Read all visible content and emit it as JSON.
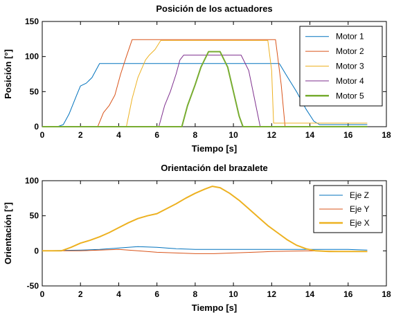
{
  "chart_data": [
    {
      "type": "line",
      "title": "Posición de los actuadores",
      "xlabel": "Tiempo [s]",
      "ylabel": "Posición [°]",
      "xlim": [
        0,
        18
      ],
      "ylim": [
        0,
        150
      ],
      "xticks": [
        0,
        2,
        4,
        6,
        8,
        10,
        12,
        14,
        16,
        18
      ],
      "yticks": [
        0,
        50,
        100,
        150
      ],
      "grid": false,
      "legend_position": "top-right",
      "series": [
        {
          "name": "Motor 1",
          "color": "#0072BD",
          "bold": false,
          "x": [
            0,
            0.8,
            1.1,
            1.4,
            1.8,
            2.0,
            2.3,
            2.6,
            3.0,
            12.4,
            12.8,
            13.3,
            13.8,
            14.2,
            14.5,
            17.0
          ],
          "y": [
            0,
            0,
            3,
            18,
            45,
            58,
            62,
            70,
            90,
            90,
            72,
            50,
            25,
            8,
            3,
            3
          ]
        },
        {
          "name": "Motor 2",
          "color": "#D95319",
          "bold": false,
          "x": [
            0,
            2.9,
            3.2,
            3.5,
            3.8,
            4.1,
            4.4,
            4.7,
            12.2,
            12.5,
            12.7,
            17.0
          ],
          "y": [
            0,
            0,
            20,
            30,
            45,
            75,
            100,
            124,
            124,
            60,
            0,
            0
          ]
        },
        {
          "name": "Motor 3",
          "color": "#EDB120",
          "bold": false,
          "x": [
            0,
            4.4,
            4.7,
            5.0,
            5.4,
            5.6,
            5.9,
            6.2,
            11.8,
            12.0,
            12.1,
            17.0
          ],
          "y": [
            0,
            0,
            40,
            70,
            95,
            102,
            110,
            123,
            123,
            80,
            5,
            5
          ]
        },
        {
          "name": "Motor 4",
          "color": "#7E2F8E",
          "bold": false,
          "x": [
            0,
            6.1,
            6.4,
            6.7,
            7.0,
            7.2,
            7.4,
            10.4,
            10.8,
            11.1,
            11.4,
            17.0
          ],
          "y": [
            0,
            0,
            30,
            50,
            75,
            95,
            102,
            102,
            80,
            40,
            0,
            0
          ]
        },
        {
          "name": "Motor 5",
          "color": "#77AC30",
          "bold": true,
          "x": [
            0,
            7.3,
            7.6,
            8.0,
            8.3,
            8.7,
            9.3,
            9.7,
            10.0,
            10.3,
            10.5,
            17.0
          ],
          "y": [
            0,
            0,
            30,
            60,
            85,
            107,
            107,
            85,
            50,
            15,
            0,
            0
          ]
        }
      ]
    },
    {
      "type": "line",
      "title": "Orientación del brazalete",
      "xlabel": "Tiempo [s]",
      "ylabel": "Orientación [°]",
      "xlim": [
        0,
        18
      ],
      "ylim": [
        -50,
        100
      ],
      "xticks": [
        0,
        2,
        4,
        6,
        8,
        10,
        12,
        14,
        16,
        18
      ],
      "yticks": [
        -50,
        0,
        50,
        100
      ],
      "grid": false,
      "legend_position": "top-right",
      "series": [
        {
          "name": "Eje Z",
          "color": "#0072BD",
          "bold": false,
          "x": [
            0,
            2,
            3,
            4,
            5,
            6,
            7,
            8,
            10,
            12,
            14,
            16,
            17
          ],
          "y": [
            0,
            1,
            2,
            4,
            6,
            5,
            3,
            2,
            2,
            2,
            2,
            2,
            1
          ]
        },
        {
          "name": "Eje Y",
          "color": "#D95319",
          "bold": false,
          "x": [
            0,
            2,
            3,
            4,
            5,
            6,
            7,
            8,
            9,
            10,
            12,
            14,
            16,
            17
          ],
          "y": [
            0,
            0,
            1,
            2,
            0,
            -2,
            -3,
            -4,
            -4,
            -3,
            -1,
            0,
            -1,
            -1
          ]
        },
        {
          "name": "Eje X",
          "color": "#EDB120",
          "bold": true,
          "x": [
            0,
            1.0,
            1.5,
            2.0,
            2.5,
            3.0,
            3.5,
            4.0,
            4.5,
            5.0,
            5.5,
            6.0,
            6.5,
            7.0,
            7.5,
            8.0,
            8.5,
            8.9,
            9.3,
            9.8,
            10.3,
            10.8,
            11.3,
            11.8,
            12.3,
            12.8,
            13.3,
            13.8,
            14.3,
            15.0,
            16.0,
            17.0
          ],
          "y": [
            0,
            0,
            5,
            11,
            15,
            20,
            26,
            33,
            40,
            46,
            50,
            53,
            60,
            67,
            75,
            82,
            88,
            92,
            90,
            82,
            72,
            60,
            48,
            36,
            26,
            16,
            8,
            3,
            0,
            -1,
            -1,
            -1
          ]
        }
      ]
    }
  ]
}
